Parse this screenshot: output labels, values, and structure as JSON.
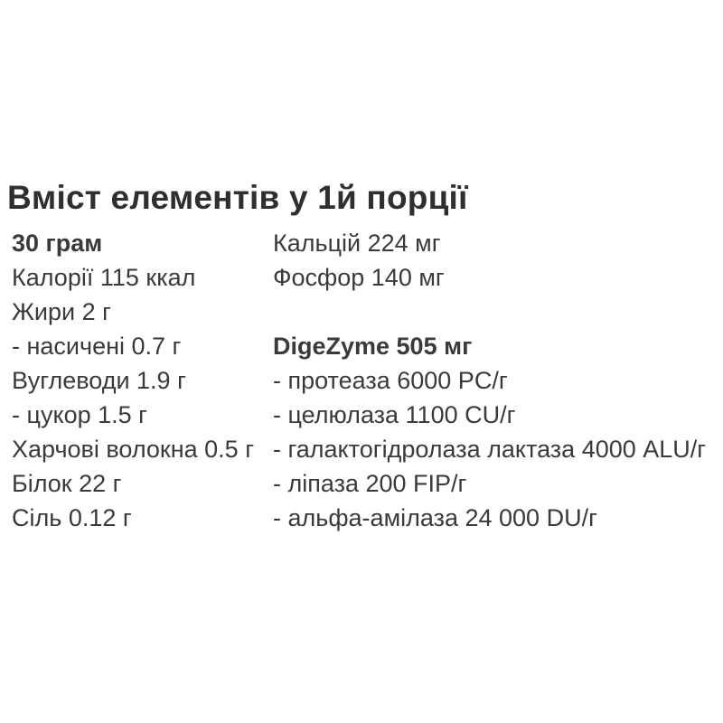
{
  "panel": {
    "title": "Вміст елементів у 1й порції"
  },
  "left_column": {
    "rows": [
      "30 грам",
      "Калорії 115 ккал",
      "Жири 2 г",
      "- насичені 0.7 г",
      "Вуглеводи 1.9 г",
      "- цукор 1.5 г",
      "Харчові волокна 0.5 г",
      "Білок 22 г",
      "Сіль 0.12 г"
    ]
  },
  "right_column": {
    "rows": [
      "Кальцій 224 мг",
      "Фосфор 140 мг",
      "DigeZyme 505 мг",
      "- протеаза 6000 PC/г",
      "- целюлаза 1100 CU/г",
      "- галактогідролаза лактаза 4000 ALU/г",
      "- ліпаза 200 FIP/г",
      "- альфа-амілаза 24 000 DU/г"
    ]
  },
  "colors": {
    "background": "#ffffff",
    "text": "#3a3a3a",
    "title": "#2f2f2f"
  }
}
